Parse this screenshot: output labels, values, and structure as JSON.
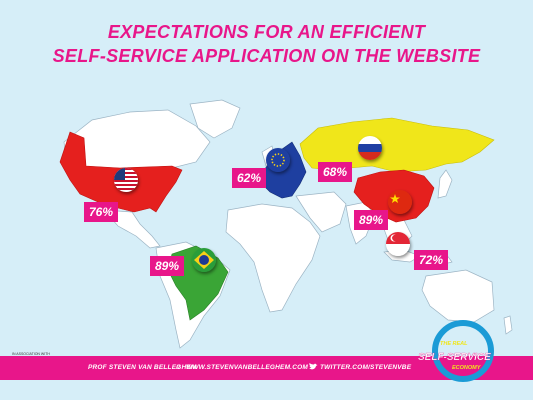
{
  "title": {
    "line1": "EXPECTATIONS FOR AN EFFICIENT",
    "line2": "SELF-SERVICE APPLICATION ON THE WEBSITE"
  },
  "regions": [
    {
      "name": "USA",
      "value": "76%",
      "flag": "usa-flag"
    },
    {
      "name": "Brazil",
      "value": "89%",
      "flag": "brazil-flag"
    },
    {
      "name": "Europe",
      "value": "62%",
      "flag": "eu-flag"
    },
    {
      "name": "Russia",
      "value": "68%",
      "flag": "russia-flag"
    },
    {
      "name": "China",
      "value": "89%",
      "flag": "china-flag"
    },
    {
      "name": "Singapore",
      "value": "72%",
      "flag": "singapore-flag"
    }
  ],
  "footer": {
    "author": "PROF STEVEN VAN BELLEGHEM",
    "separator": "//",
    "website": "WWW.STEVENVANBELLEGHEM.COM",
    "twitter": "TWITTER.COM/STEVENVBE",
    "logo_text": "The Real Self-Service Economy",
    "brand_line1": "THE REAL",
    "brand_line2": "SELF-SERVICE",
    "brand_line3": "ECONOMY",
    "sponsor_label": "IN ASSOCIATION WITH",
    "sponsor_name": "The Phoenix"
  },
  "colors": {
    "accent": "#e8168a",
    "usa": "#e5201e",
    "brazil": "#3aa536",
    "europe": "#1e3fa0",
    "russia": "#f0e61a",
    "china": "#e5201e",
    "background": "#d6eef8",
    "ring": "#1b9bd6"
  }
}
